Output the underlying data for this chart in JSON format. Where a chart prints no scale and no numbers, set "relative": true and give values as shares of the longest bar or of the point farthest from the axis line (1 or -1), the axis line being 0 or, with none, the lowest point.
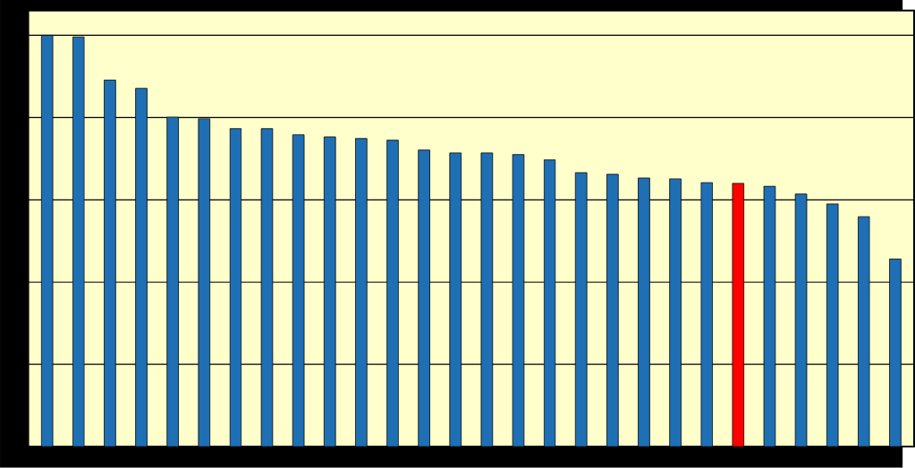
{
  "chart_data": {
    "type": "bar",
    "relative": true,
    "grid": "y",
    "categories": [
      null,
      null,
      null,
      null,
      null,
      null,
      null,
      null,
      null,
      null,
      null,
      null,
      null,
      null,
      null,
      null,
      null,
      null,
      null,
      null,
      null,
      null,
      null,
      null,
      null,
      null,
      null,
      null
    ],
    "values": [
      1,
      0.996,
      0.891,
      0.871,
      0.801,
      0.797,
      0.773,
      0.773,
      0.758,
      0.753,
      0.749,
      0.745,
      0.721,
      0.714,
      0.714,
      0.71,
      0.697,
      0.666,
      0.662,
      0.653,
      0.651,
      0.642,
      0.64,
      0.633,
      0.614,
      0.59,
      0.559,
      0.456
    ],
    "colors": [
      "#1f6fb4",
      "#1f6fb4",
      "#1f6fb4",
      "#1f6fb4",
      "#1f6fb4",
      "#1f6fb4",
      "#1f6fb4",
      "#1f6fb4",
      "#1f6fb4",
      "#1f6fb4",
      "#1f6fb4",
      "#1f6fb4",
      "#1f6fb4",
      "#1f6fb4",
      "#1f6fb4",
      "#1f6fb4",
      "#1f6fb4",
      "#1f6fb4",
      "#1f6fb4",
      "#1f6fb4",
      "#1f6fb4",
      "#1f6fb4",
      "#ff0000",
      "#1f6fb4",
      "#1f6fb4",
      "#1f6fb4",
      "#1f6fb4",
      "#1f6fb4"
    ]
  }
}
